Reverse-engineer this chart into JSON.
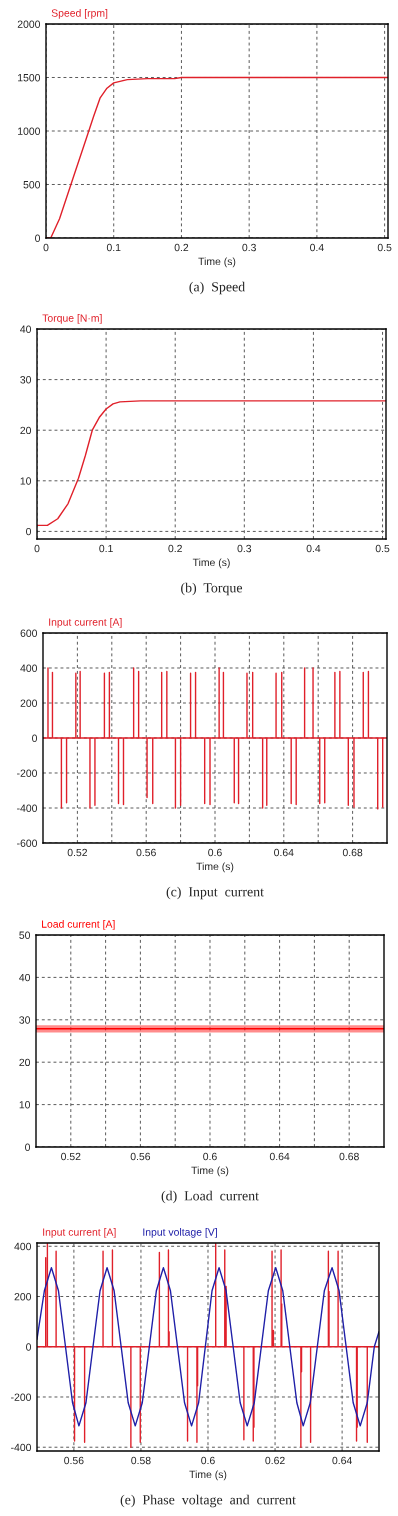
{
  "chart_data": [
    {
      "type": "line",
      "title": "(a)  Speed",
      "xlabel": "Time (s)",
      "xlim": [
        0,
        0.505
      ],
      "ylim": [
        0,
        2000
      ],
      "xticks": [
        0,
        0.1,
        0.2,
        0.3,
        0.4,
        0.5
      ],
      "yticks": [
        0,
        500,
        1000,
        1500,
        2000
      ],
      "grid": true,
      "legend": "top left",
      "series": [
        {
          "name": "Speed [rpm]",
          "color": "#e0202a",
          "x": [
            0,
            0.007,
            0.02,
            0.04,
            0.06,
            0.07,
            0.08,
            0.09,
            0.1,
            0.12,
            0.15,
            0.19,
            0.2,
            0.505
          ],
          "values": [
            0,
            0,
            180,
            560,
            940,
            1130,
            1310,
            1400,
            1450,
            1480,
            1490,
            1490,
            1500,
            1500
          ]
        }
      ]
    },
    {
      "type": "line",
      "title": "(b)  Torque",
      "xlabel": "Time (s)",
      "xlim": [
        0,
        0.505
      ],
      "ylim": [
        -1.5,
        40
      ],
      "xticks": [
        0,
        0.1,
        0.2,
        0.3,
        0.4,
        0.5
      ],
      "yticks": [
        0,
        10,
        20,
        30,
        40
      ],
      "grid": true,
      "legend": "top left",
      "series": [
        {
          "name": "Torque [N·m]",
          "color": "#e0202a",
          "x": [
            0,
            0.015,
            0.03,
            0.045,
            0.06,
            0.07,
            0.08,
            0.09,
            0.1,
            0.11,
            0.12,
            0.15,
            0.505
          ],
          "values": [
            1.2,
            1.2,
            2.5,
            5.5,
            10.5,
            15,
            20,
            22.5,
            24.2,
            25.2,
            25.6,
            25.8,
            25.8
          ]
        }
      ]
    },
    {
      "type": "line",
      "title": "(c)  Input  current",
      "xlabel": "Time (s)",
      "xlim": [
        0.5,
        0.7
      ],
      "ylim": [
        -600,
        600
      ],
      "xticks": [
        0.52,
        {
          "value": 0.54,
          "label": null
        },
        0.56,
        {
          "value": 0.58,
          "label": null
        },
        0.6,
        {
          "value": 0.62,
          "label": null
        },
        0.64,
        {
          "value": 0.66,
          "label": null
        },
        0.68
      ],
      "yticks": [
        -600,
        -400,
        -200,
        0,
        200,
        400,
        600
      ],
      "grid": true,
      "legend": "top left",
      "series": [
        {
          "name": "Input current [A]",
          "color": "#e0202a",
          "x": [
            0.5,
            0.5029,
            0.5029,
            0.5029,
            0.5055,
            0.5055,
            0.5055,
            0.5107,
            0.5107,
            0.5107,
            0.5137,
            0.5137,
            0.5137,
            0.5191,
            0.5191,
            0.5191,
            0.5216,
            0.5216,
            0.5216,
            0.5273,
            0.5273,
            0.5273,
            0.5302,
            0.5302,
            0.5302,
            0.5357,
            0.5357,
            0.5357,
            0.5386,
            0.5386,
            0.5386,
            0.5439,
            0.5439,
            0.5439,
            0.5468,
            0.5468,
            0.5468,
            0.5527,
            0.5527,
            0.5527,
            0.5556,
            0.5556,
            0.5556,
            0.5605,
            0.5605,
            0.5605,
            0.5638,
            0.5638,
            0.5638,
            0.569,
            0.569,
            0.569,
            0.572,
            0.572,
            0.572,
            0.577,
            0.577,
            0.577,
            0.58,
            0.58,
            0.58,
            0.5858,
            0.5858,
            0.5858,
            0.5887,
            0.5887,
            0.5887,
            0.594,
            0.594,
            0.594,
            0.5971,
            0.5971,
            0.5971,
            0.6024,
            0.6024,
            0.6024,
            0.6049,
            0.6049,
            0.6049,
            0.6112,
            0.6112,
            0.6112,
            0.6137,
            0.6137,
            0.6137,
            0.6186,
            0.6186,
            0.6186,
            0.6219,
            0.6219,
            0.6219,
            0.6277,
            0.6277,
            0.6277,
            0.6301,
            0.6301,
            0.6301,
            0.6355,
            0.6355,
            0.6355,
            0.6388,
            0.6388,
            0.6388,
            0.6443,
            0.6443,
            0.6443,
            0.6472,
            0.6472,
            0.6472,
            0.6521,
            0.6521,
            0.6521,
            0.657,
            0.657,
            0.657,
            0.6609,
            0.6609,
            0.6609,
            0.6638,
            0.6638,
            0.6638,
            0.6697,
            0.6697,
            0.6697,
            0.6726,
            0.6726,
            0.6726,
            0.6775,
            0.6775,
            0.6775,
            0.6808,
            0.6808,
            0.6808,
            0.6862,
            0.6862,
            0.6862,
            0.6892,
            0.6892,
            0.6892,
            0.6946,
            0.6946,
            0.6946,
            0.6975,
            0.6975,
            0.6975,
            0.7
          ],
          "values": [
            0,
            0,
            400,
            0,
            0,
            375,
            0,
            0,
            -400,
            0,
            0,
            -370,
            0,
            0,
            370,
            0,
            0,
            380,
            0,
            0,
            -400,
            0,
            0,
            -385,
            0,
            0,
            370,
            0,
            0,
            375,
            0,
            0,
            -375,
            0,
            0,
            -380,
            0,
            0,
            400,
            0,
            0,
            380,
            0,
            0,
            -340,
            0,
            0,
            -375,
            0,
            0,
            375,
            0,
            0,
            380,
            0,
            0,
            -400,
            0,
            0,
            -385,
            0,
            0,
            370,
            0,
            0,
            375,
            0,
            0,
            -375,
            0,
            0,
            -380,
            0,
            0,
            400,
            0,
            0,
            375,
            0,
            0,
            -370,
            0,
            0,
            -375,
            0,
            0,
            370,
            0,
            0,
            375,
            0,
            0,
            -400,
            0,
            0,
            -385,
            0,
            0,
            370,
            0,
            0,
            375,
            0,
            0,
            -375,
            0,
            0,
            -380,
            0,
            0,
            400,
            0,
            0,
            400,
            0,
            0,
            -375,
            0,
            0,
            -370,
            0,
            0,
            375,
            0,
            0,
            380,
            0,
            0,
            -385,
            0,
            0,
            -395,
            0,
            0,
            375,
            0,
            0,
            380,
            0,
            0,
            -405,
            0,
            0,
            -395,
            0,
            0
          ]
        }
      ]
    },
    {
      "type": "line",
      "title": "(d)  Load  current",
      "xlabel": "Time (s)",
      "xlim": [
        0.5,
        0.7
      ],
      "ylim": [
        0,
        50
      ],
      "xticks": [
        0.52,
        {
          "value": 0.54,
          "label": null
        },
        0.56,
        {
          "value": 0.58,
          "label": null
        },
        0.6,
        {
          "value": 0.62,
          "label": null
        },
        0.64,
        {
          "value": 0.66,
          "label": null
        },
        0.68
      ],
      "yticks": [
        0,
        10,
        20,
        30,
        40,
        50
      ],
      "grid": true,
      "legend": "top left",
      "series": [
        {
          "name": "Load current [A]",
          "color": "#ff0000",
          "x": [
            0.5,
            0.7
          ],
          "values": [
            27.9,
            27.9
          ],
          "lower": [
            27.0,
            27.0
          ],
          "upper": [
            28.7,
            28.7
          ]
        }
      ]
    },
    {
      "type": "line",
      "title": "(e)  Phase  voltage  and  current",
      "xlabel": "Time (s)",
      "xlim": [
        0.549,
        0.651
      ],
      "ylim": [
        -415,
        413
      ],
      "xticks": [
        0.56,
        0.58,
        0.6,
        0.62,
        0.64
      ],
      "yticks": [
        -400,
        -200,
        0,
        200,
        400
      ],
      "grid": true,
      "legend": "top left",
      "series": [
        {
          "name": "Input current [A]",
          "color": "#e0202a",
          "x": [
            0.549,
            0.5516,
            0.5516,
            0.5516,
            0.5521,
            0.5521,
            0.5521,
            0.5547,
            0.5547,
            0.5547,
            0.5602,
            0.5602,
            0.5602,
            0.5632,
            0.5632,
            0.5632,
            0.5687,
            0.5687,
            0.5687,
            0.5715,
            0.5715,
            0.5715,
            0.577,
            0.577,
            0.577,
            0.5798,
            0.5798,
            0.5798,
            0.5855,
            0.5855,
            0.5855,
            0.5882,
            0.5882,
            0.5882,
            0.5884,
            0.5884,
            0.5884,
            0.5939,
            0.5939,
            0.5939,
            0.5967,
            0.5967,
            0.5967,
            0.5969,
            0.5969,
            0.5969,
            0.6023,
            0.6023,
            0.6023,
            0.605,
            0.605,
            0.605,
            0.6054,
            0.6054,
            0.6054,
            0.6107,
            0.6107,
            0.6107,
            0.6135,
            0.6135,
            0.6135,
            0.6137,
            0.6137,
            0.6137,
            0.6191,
            0.6191,
            0.6191,
            0.6195,
            0.6195,
            0.6195,
            0.6218,
            0.6218,
            0.6218,
            0.622,
            0.622,
            0.622,
            0.6277,
            0.6277,
            0.6277,
            0.6279,
            0.6279,
            0.6279,
            0.6306,
            0.6306,
            0.6306,
            0.6359,
            0.6359,
            0.6359,
            0.6361,
            0.6361,
            0.6361,
            0.6388,
            0.6388,
            0.6388,
            0.6443,
            0.6443,
            0.6443,
            0.6445,
            0.6445,
            0.6445,
            0.6475,
            0.6475,
            0.6475,
            0.651
          ],
          "values": [
            0,
            0,
            355,
            0,
            0,
            410,
            0,
            0,
            380,
            0,
            0,
            -375,
            0,
            0,
            -380,
            0,
            0,
            380,
            0,
            0,
            385,
            0,
            0,
            -400,
            0,
            0,
            -380,
            0,
            0,
            375,
            0,
            0,
            385,
            0,
            0,
            60,
            0,
            0,
            -375,
            0,
            0,
            -380,
            0,
            0,
            -155,
            0,
            0,
            410,
            0,
            0,
            385,
            0,
            0,
            240,
            0,
            0,
            -370,
            0,
            0,
            -375,
            0,
            0,
            -320,
            0,
            0,
            380,
            0,
            0,
            65,
            0,
            0,
            385,
            0,
            0,
            170,
            0,
            0,
            -400,
            0,
            0,
            -100,
            0,
            0,
            -380,
            0,
            0,
            380,
            0,
            0,
            220,
            0,
            0,
            380,
            0,
            0,
            -375,
            0,
            0,
            -320,
            0,
            0,
            -380,
            0,
            0
          ]
        },
        {
          "name": "Input voltage [V]",
          "color": "#1f1fa8",
          "x": [
            0.549,
            0.5512,
            0.5533,
            0.5554,
            0.5575,
            0.5596,
            0.5615,
            0.5636,
            0.5657,
            0.5678,
            0.5699,
            0.572,
            0.5741,
            0.5762,
            0.5783,
            0.5804,
            0.5825,
            0.5846,
            0.5867,
            0.5888,
            0.5909,
            0.593,
            0.5951,
            0.5972,
            0.5992,
            0.6012,
            0.6033,
            0.6054,
            0.6075,
            0.6096,
            0.6117,
            0.6138,
            0.6159,
            0.618,
            0.6202,
            0.6223,
            0.6244,
            0.6265,
            0.6284,
            0.6305,
            0.6326,
            0.6347,
            0.637,
            0.6391,
            0.6412,
            0.6433,
            0.6454,
            0.6475,
            0.6496,
            0.651
          ],
          "values": [
            30,
            223,
            315,
            223,
            0,
            -223,
            -315,
            -223,
            0,
            223,
            315,
            223,
            0,
            -223,
            -315,
            -223,
            0,
            223,
            315,
            223,
            0,
            -223,
            -315,
            -223,
            0,
            223,
            315,
            223,
            0,
            -223,
            -315,
            -223,
            0,
            223,
            315,
            223,
            0,
            -223,
            -315,
            -223,
            0,
            223,
            315,
            223,
            0,
            -223,
            -315,
            -223,
            0,
            60
          ]
        }
      ]
    }
  ]
}
